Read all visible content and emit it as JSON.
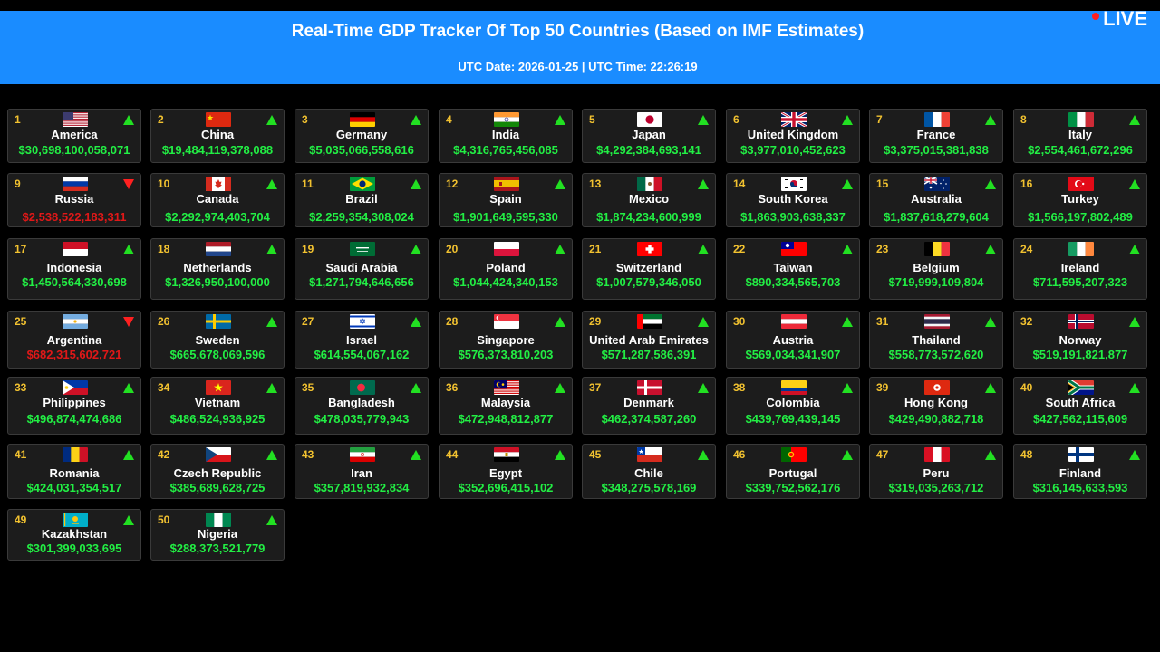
{
  "header": {
    "title": "Real-Time GDP Tracker Of Top 50 Countries (Based on IMF Estimates)",
    "subtitle": "UTC Date: 2026-01-25 | UTC Time: 22:26:19",
    "live_label": "LIVE"
  },
  "colors": {
    "header_bg": "#1a8cff",
    "up": "#22e022",
    "down": "#ff2020",
    "gdp_text": "#22ee44",
    "rank_text": "#f2c230"
  },
  "countries": [
    {
      "rank": "1",
      "name": "America",
      "gdp": "$30,698,100,058,071",
      "trend": "up",
      "flag": "us"
    },
    {
      "rank": "2",
      "name": "China",
      "gdp": "$19,484,119,378,088",
      "trend": "up",
      "flag": "cn"
    },
    {
      "rank": "3",
      "name": "Germany",
      "gdp": "$5,035,066,558,616",
      "trend": "up",
      "flag": "de"
    },
    {
      "rank": "4",
      "name": "India",
      "gdp": "$4,316,765,456,085",
      "trend": "up",
      "flag": "in"
    },
    {
      "rank": "5",
      "name": "Japan",
      "gdp": "$4,292,384,693,141",
      "trend": "up",
      "flag": "jp"
    },
    {
      "rank": "6",
      "name": "United Kingdom",
      "gdp": "$3,977,010,452,623",
      "trend": "up",
      "flag": "gb"
    },
    {
      "rank": "7",
      "name": "France",
      "gdp": "$3,375,015,381,838",
      "trend": "up",
      "flag": "fr"
    },
    {
      "rank": "8",
      "name": "Italy",
      "gdp": "$2,554,461,672,296",
      "trend": "up",
      "flag": "it"
    },
    {
      "rank": "9",
      "name": "Russia",
      "gdp": "$2,538,522,183,311",
      "trend": "down",
      "flag": "ru"
    },
    {
      "rank": "10",
      "name": "Canada",
      "gdp": "$2,292,974,403,704",
      "trend": "up",
      "flag": "ca"
    },
    {
      "rank": "11",
      "name": "Brazil",
      "gdp": "$2,259,354,308,024",
      "trend": "up",
      "flag": "br"
    },
    {
      "rank": "12",
      "name": "Spain",
      "gdp": "$1,901,649,595,330",
      "trend": "up",
      "flag": "es"
    },
    {
      "rank": "13",
      "name": "Mexico",
      "gdp": "$1,874,234,600,999",
      "trend": "up",
      "flag": "mx"
    },
    {
      "rank": "14",
      "name": "South Korea",
      "gdp": "$1,863,903,638,337",
      "trend": "up",
      "flag": "kr"
    },
    {
      "rank": "15",
      "name": "Australia",
      "gdp": "$1,837,618,279,604",
      "trend": "up",
      "flag": "au"
    },
    {
      "rank": "16",
      "name": "Turkey",
      "gdp": "$1,566,197,802,489",
      "trend": "up",
      "flag": "tr"
    },
    {
      "rank": "17",
      "name": "Indonesia",
      "gdp": "$1,450,564,330,698",
      "trend": "up",
      "flag": "id"
    },
    {
      "rank": "18",
      "name": "Netherlands",
      "gdp": "$1,326,950,100,000",
      "trend": "up",
      "flag": "nl"
    },
    {
      "rank": "19",
      "name": "Saudi Arabia",
      "gdp": "$1,271,794,646,656",
      "trend": "up",
      "flag": "sa"
    },
    {
      "rank": "20",
      "name": "Poland",
      "gdp": "$1,044,424,340,153",
      "trend": "up",
      "flag": "pl"
    },
    {
      "rank": "21",
      "name": "Switzerland",
      "gdp": "$1,007,579,346,050",
      "trend": "up",
      "flag": "ch"
    },
    {
      "rank": "22",
      "name": "Taiwan",
      "gdp": "$890,334,565,703",
      "trend": "up",
      "flag": "tw"
    },
    {
      "rank": "23",
      "name": "Belgium",
      "gdp": "$719,999,109,804",
      "trend": "up",
      "flag": "be"
    },
    {
      "rank": "24",
      "name": "Ireland",
      "gdp": "$711,595,207,323",
      "trend": "up",
      "flag": "ie"
    },
    {
      "rank": "25",
      "name": "Argentina",
      "gdp": "$682,315,602,721",
      "trend": "down",
      "flag": "ar"
    },
    {
      "rank": "26",
      "name": "Sweden",
      "gdp": "$665,678,069,596",
      "trend": "up",
      "flag": "se"
    },
    {
      "rank": "27",
      "name": "Israel",
      "gdp": "$614,554,067,162",
      "trend": "up",
      "flag": "il"
    },
    {
      "rank": "28",
      "name": "Singapore",
      "gdp": "$576,373,810,203",
      "trend": "up",
      "flag": "sg"
    },
    {
      "rank": "29",
      "name": "United Arab Emirates",
      "gdp": "$571,287,586,391",
      "trend": "up",
      "flag": "ae"
    },
    {
      "rank": "30",
      "name": "Austria",
      "gdp": "$569,034,341,907",
      "trend": "up",
      "flag": "at"
    },
    {
      "rank": "31",
      "name": "Thailand",
      "gdp": "$558,773,572,620",
      "trend": "up",
      "flag": "th"
    },
    {
      "rank": "32",
      "name": "Norway",
      "gdp": "$519,191,821,877",
      "trend": "up",
      "flag": "no"
    },
    {
      "rank": "33",
      "name": "Philippines",
      "gdp": "$496,874,474,686",
      "trend": "up",
      "flag": "ph"
    },
    {
      "rank": "34",
      "name": "Vietnam",
      "gdp": "$486,524,936,925",
      "trend": "up",
      "flag": "vn"
    },
    {
      "rank": "35",
      "name": "Bangladesh",
      "gdp": "$478,035,779,943",
      "trend": "up",
      "flag": "bd"
    },
    {
      "rank": "36",
      "name": "Malaysia",
      "gdp": "$472,948,812,877",
      "trend": "up",
      "flag": "my"
    },
    {
      "rank": "37",
      "name": "Denmark",
      "gdp": "$462,374,587,260",
      "trend": "up",
      "flag": "dk"
    },
    {
      "rank": "38",
      "name": "Colombia",
      "gdp": "$439,769,439,145",
      "trend": "up",
      "flag": "co"
    },
    {
      "rank": "39",
      "name": "Hong Kong",
      "gdp": "$429,490,882,718",
      "trend": "up",
      "flag": "hk"
    },
    {
      "rank": "40",
      "name": "South Africa",
      "gdp": "$427,562,115,609",
      "trend": "up",
      "flag": "za"
    },
    {
      "rank": "41",
      "name": "Romania",
      "gdp": "$424,031,354,517",
      "trend": "up",
      "flag": "ro"
    },
    {
      "rank": "42",
      "name": "Czech Republic",
      "gdp": "$385,689,628,725",
      "trend": "up",
      "flag": "cz"
    },
    {
      "rank": "43",
      "name": "Iran",
      "gdp": "$357,819,932,834",
      "trend": "up",
      "flag": "ir"
    },
    {
      "rank": "44",
      "name": "Egypt",
      "gdp": "$352,696,415,102",
      "trend": "up",
      "flag": "eg"
    },
    {
      "rank": "45",
      "name": "Chile",
      "gdp": "$348,275,578,169",
      "trend": "up",
      "flag": "cl"
    },
    {
      "rank": "46",
      "name": "Portugal",
      "gdp": "$339,752,562,176",
      "trend": "up",
      "flag": "pt"
    },
    {
      "rank": "47",
      "name": "Peru",
      "gdp": "$319,035,263,712",
      "trend": "up",
      "flag": "pe"
    },
    {
      "rank": "48",
      "name": "Finland",
      "gdp": "$316,145,633,593",
      "trend": "up",
      "flag": "fi"
    },
    {
      "rank": "49",
      "name": "Kazakhstan",
      "gdp": "$301,399,033,695",
      "trend": "up",
      "flag": "kz"
    },
    {
      "rank": "50",
      "name": "Nigeria",
      "gdp": "$288,373,521,779",
      "trend": "up",
      "flag": "ng"
    }
  ]
}
